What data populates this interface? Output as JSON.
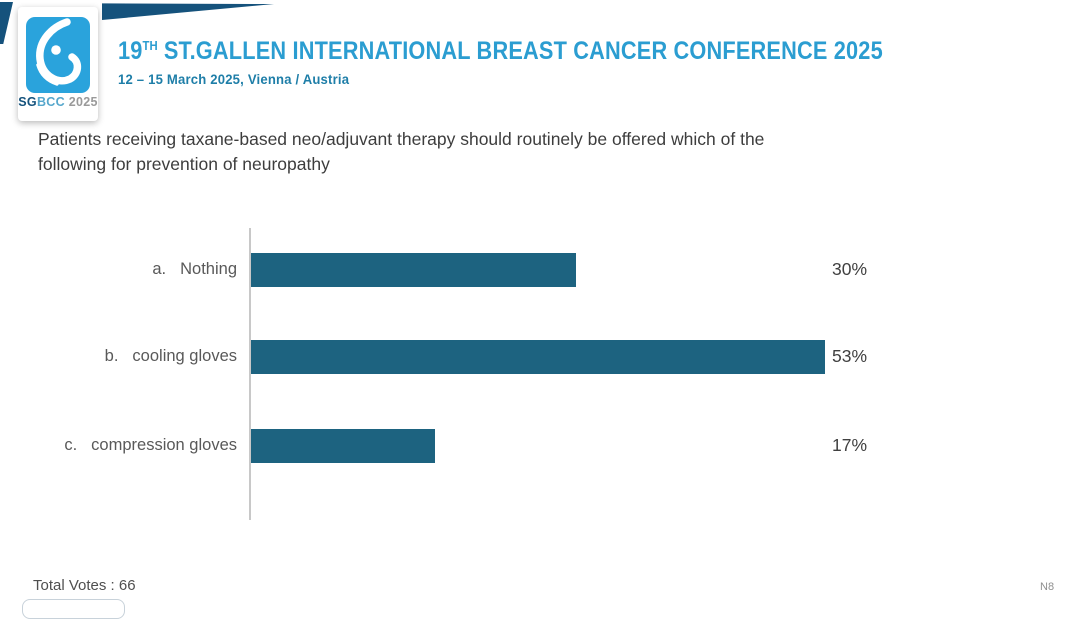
{
  "header": {
    "logo": {
      "text_sg": "SG",
      "text_bcc": "BCC",
      "text_year": " 2025"
    },
    "title_num": "19",
    "title_sup": "TH",
    "title_rest": " ST.GALLEN INTERNATIONAL BREAST CANCER CONFERENCE 2025",
    "subtitle": "12 – 15 March 2025, Vienna / Austria"
  },
  "question": {
    "line1": "Patients receiving taxane-based neo/adjuvant therapy should routinely be offered which of the",
    "line2": "following for prevention of neuropathy"
  },
  "chart_data": {
    "type": "bar",
    "orientation": "horizontal",
    "title": "",
    "categories": [
      "Nothing",
      "cooling gloves",
      "compression gloves"
    ],
    "values": [
      30,
      53,
      17
    ],
    "value_labels": [
      "30%",
      "53%",
      "17%"
    ],
    "bar_color": "#1d6380",
    "xlabel": "",
    "ylabel": "",
    "legend": "none",
    "gridlines": false,
    "value_axis_visible": false,
    "items": [
      {
        "letter": "a.",
        "label": "Nothing",
        "value": 30,
        "value_label": "30%"
      },
      {
        "letter": "b.",
        "label": "cooling gloves",
        "value": 53,
        "value_label": "53%"
      },
      {
        "letter": "c.",
        "label": "compression gloves",
        "value": 17,
        "value_label": "17%"
      }
    ]
  },
  "footer": {
    "total_votes": "Total Votes : 66",
    "slide_code": "N8"
  }
}
